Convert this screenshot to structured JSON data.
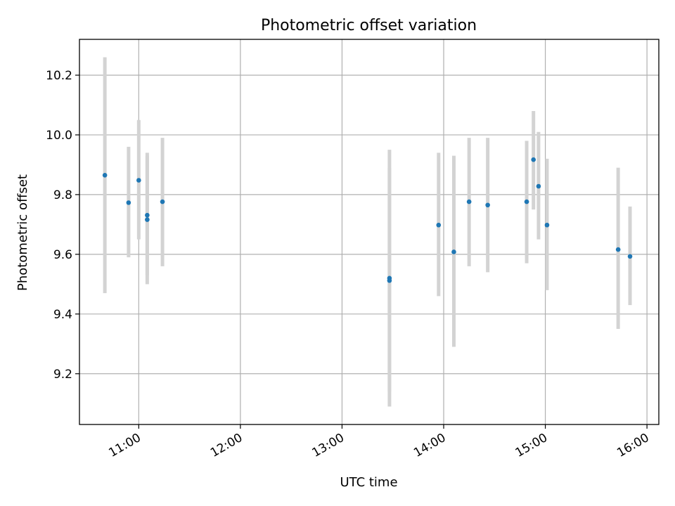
{
  "chart_data": {
    "type": "scatter",
    "title": "Photometric offset variation",
    "xlabel": "UTC time",
    "ylabel": "Photometric offset",
    "xlim": [
      "10:25",
      "16:07"
    ],
    "ylim": [
      9.03,
      10.32
    ],
    "x_ticks": [
      "11:00",
      "12:00",
      "13:00",
      "14:00",
      "15:00",
      "16:00"
    ],
    "y_ticks": [
      "9.2",
      "9.4",
      "9.6",
      "9.8",
      "10.0",
      "10.2"
    ],
    "grid": true,
    "legend": "none",
    "marker_color": "#1f77b4",
    "errorbar_color": "#d3d3d3",
    "points": [
      {
        "t": "10:40",
        "y": 9.865,
        "lo": 9.47,
        "hi": 10.26
      },
      {
        "t": "10:54",
        "y": 9.773,
        "lo": 9.59,
        "hi": 9.96
      },
      {
        "t": "11:00",
        "y": 9.848,
        "lo": 9.65,
        "hi": 10.05
      },
      {
        "t": "11:05",
        "y": 9.716,
        "lo": 9.5,
        "hi": 9.93
      },
      {
        "t": "11:05",
        "y": 9.731,
        "lo": 9.53,
        "hi": 9.94
      },
      {
        "t": "11:14",
        "y": 9.776,
        "lo": 9.56,
        "hi": 9.99
      },
      {
        "t": "13:28",
        "y": 9.52,
        "lo": 9.09,
        "hi": 9.95
      },
      {
        "t": "13:28",
        "y": 9.512,
        "lo": 9.14,
        "hi": 9.89
      },
      {
        "t": "13:57",
        "y": 9.698,
        "lo": 9.46,
        "hi": 9.94
      },
      {
        "t": "14:06",
        "y": 9.608,
        "lo": 9.29,
        "hi": 9.93
      },
      {
        "t": "14:15",
        "y": 9.776,
        "lo": 9.56,
        "hi": 9.99
      },
      {
        "t": "14:26",
        "y": 9.765,
        "lo": 9.54,
        "hi": 9.99
      },
      {
        "t": "14:49",
        "y": 9.776,
        "lo": 9.57,
        "hi": 9.98
      },
      {
        "t": "14:53",
        "y": 9.917,
        "lo": 9.75,
        "hi": 10.08
      },
      {
        "t": "14:56",
        "y": 9.828,
        "lo": 9.65,
        "hi": 10.01
      },
      {
        "t": "15:01",
        "y": 9.698,
        "lo": 9.48,
        "hi": 9.92
      },
      {
        "t": "15:43",
        "y": 9.616,
        "lo": 9.35,
        "hi": 9.89
      },
      {
        "t": "15:50",
        "y": 9.593,
        "lo": 9.43,
        "hi": 9.76
      }
    ]
  }
}
